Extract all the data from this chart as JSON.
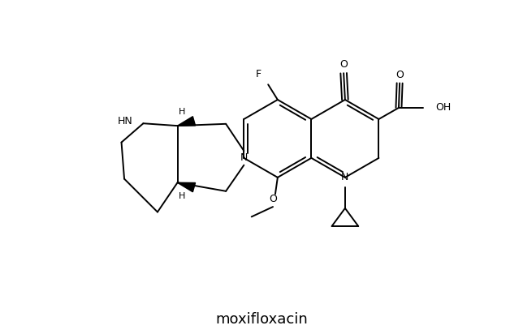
{
  "title": "moxifloxacin",
  "title_fontsize": 13,
  "fig_width": 6.44,
  "fig_height": 4.12,
  "dpi": 100,
  "lw": 1.4,
  "lw_bold": 4.0,
  "xlim": [
    0,
    10
  ],
  "ylim": [
    0,
    7
  ]
}
